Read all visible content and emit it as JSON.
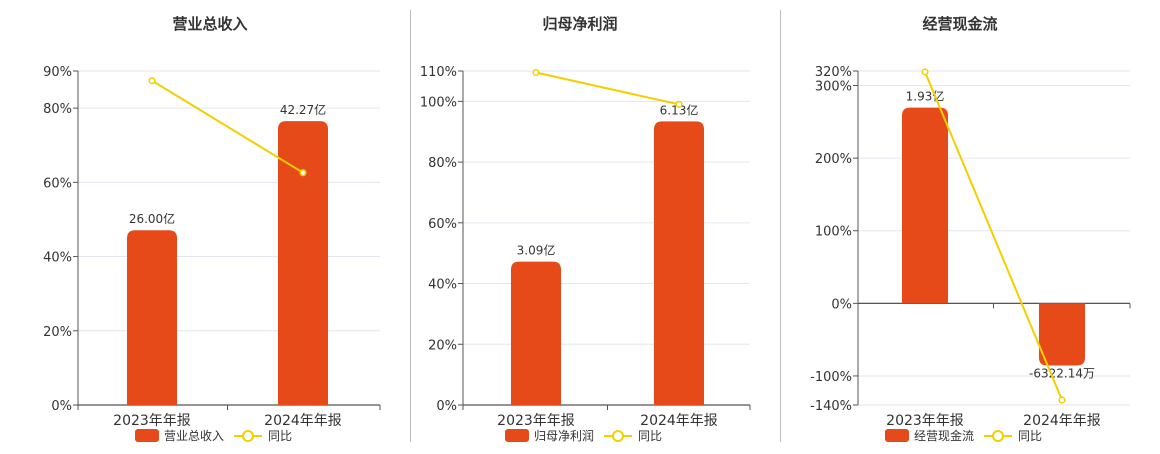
{
  "colors": {
    "bar": "#E64A19",
    "line": "#F2D000",
    "axis": "#555555",
    "grid": "#E3E6F0",
    "divider": "#BDBDBD",
    "text": "#333333"
  },
  "chart_data": [
    {
      "type": "bar",
      "title": "营业总收入",
      "categories": [
        "2023年年报",
        "2024年年报"
      ],
      "series": [
        {
          "name": "营业总收入",
          "type": "bar",
          "values": [
            26.0,
            42.27
          ],
          "unit": "亿",
          "labels": [
            "26.00亿",
            "42.27亿"
          ]
        },
        {
          "name": "同比",
          "type": "line",
          "values": [
            87.4,
            62.6
          ],
          "unit": "%"
        }
      ],
      "yticks": [
        "0%",
        "20%",
        "40%",
        "60%",
        "80%",
        "90%"
      ],
      "ytick_values": [
        0,
        20,
        40,
        60,
        80,
        90
      ],
      "ylim": [
        0,
        90
      ],
      "legend": "bottom",
      "grid": true
    },
    {
      "type": "bar",
      "title": "归母净利润",
      "categories": [
        "2023年年报",
        "2024年年报"
      ],
      "series": [
        {
          "name": "归母净利润",
          "type": "bar",
          "values": [
            3.09,
            6.13
          ],
          "unit": "亿",
          "labels": [
            "3.09亿",
            "6.13亿"
          ]
        },
        {
          "name": "同比",
          "type": "line",
          "values": [
            109.5,
            99.0
          ],
          "unit": "%"
        }
      ],
      "yticks": [
        "0%",
        "20%",
        "40%",
        "60%",
        "80%",
        "100%",
        "110%"
      ],
      "ytick_values": [
        0,
        20,
        40,
        60,
        80,
        100,
        110
      ],
      "ylim": [
        0,
        110
      ],
      "legend": "bottom",
      "grid": true
    },
    {
      "type": "bar",
      "title": "经营现金流",
      "categories": [
        "2023年年报",
        "2024年年报"
      ],
      "series": [
        {
          "name": "经营现金流",
          "type": "bar",
          "values": [
            1.93,
            -0.632214
          ],
          "unit": "亿",
          "labels": [
            "1.93亿",
            "-6322.14万"
          ]
        },
        {
          "name": "同比",
          "type": "line",
          "values": [
            318.8,
            -133.2
          ],
          "unit": "%"
        }
      ],
      "yticks": [
        "-140%",
        "-100%",
        "0%",
        "100%",
        "200%",
        "300%",
        "320%"
      ],
      "ytick_values": [
        -140,
        -100,
        0,
        100,
        200,
        300,
        320
      ],
      "ylim": [
        -140,
        320
      ],
      "legend": "bottom",
      "grid": true
    }
  ]
}
